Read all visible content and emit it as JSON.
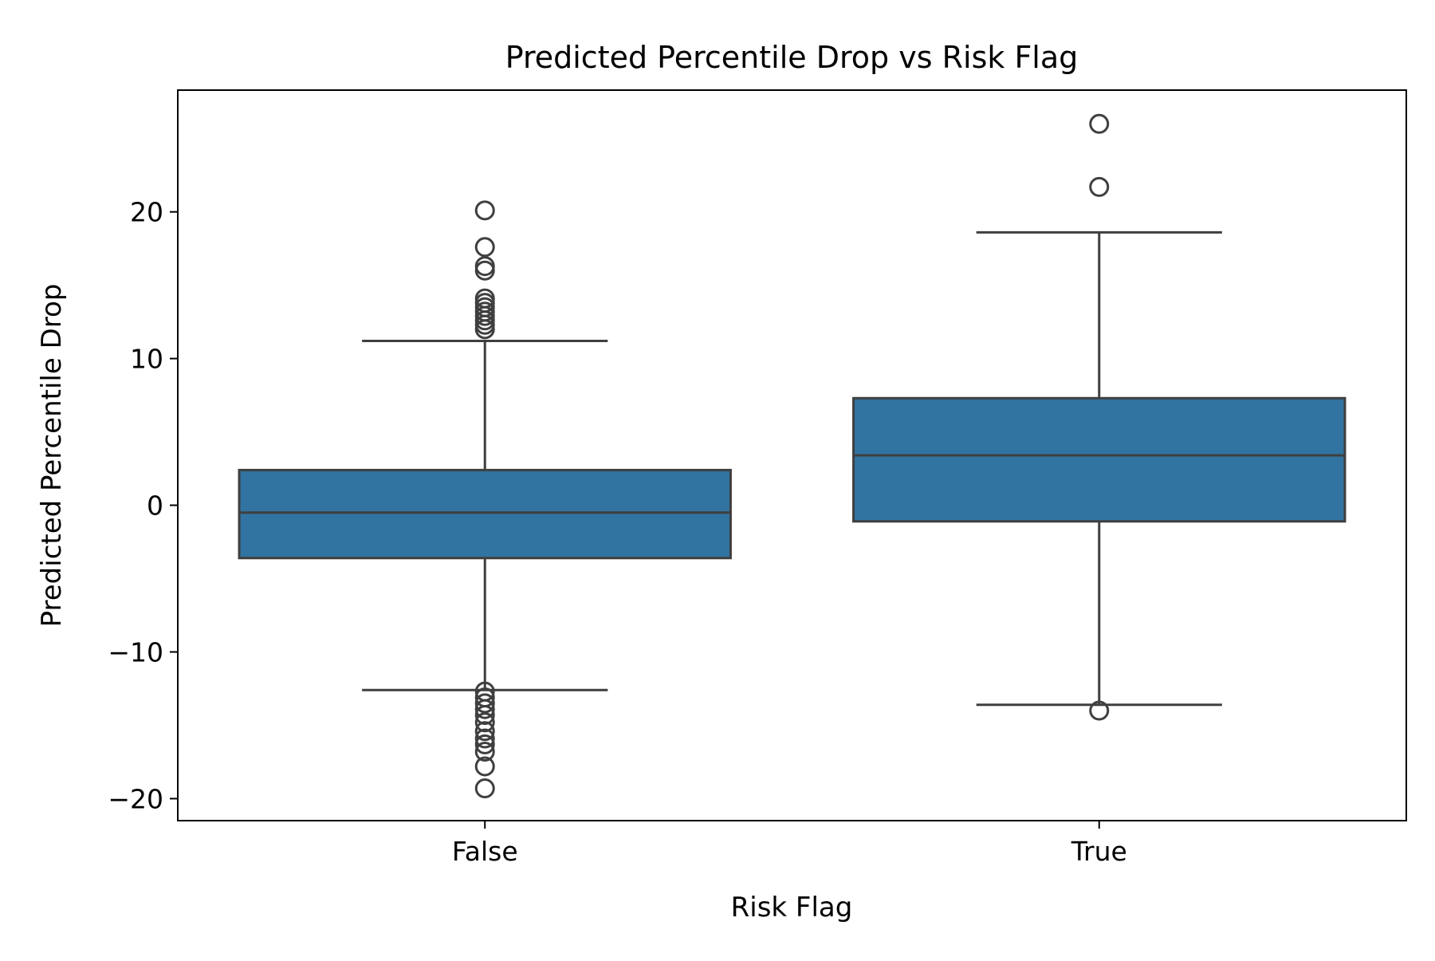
{
  "chart_data": {
    "type": "box",
    "title": "Predicted Percentile Drop vs Risk Flag",
    "xlabel": "Risk Flag",
    "ylabel": "Predicted Percentile Drop",
    "categories": [
      "False",
      "True"
    ],
    "ylim": [
      -21.5,
      28.3
    ],
    "yticks": [
      -20,
      -10,
      0,
      10,
      20
    ],
    "ytick_labels": [
      "−20",
      "−10",
      "0",
      "10",
      "20"
    ],
    "grid": false,
    "legend": "none",
    "box_color": "#3274a1",
    "line_color": "#3f3f3f",
    "boxes": [
      {
        "category": "False",
        "whisker_low": -12.6,
        "q1": -3.6,
        "median": -0.5,
        "q3": 2.4,
        "whisker_high": 11.2,
        "outliers": [
          20.1,
          17.6,
          16.3,
          16.0,
          14.1,
          13.8,
          13.5,
          13.2,
          12.9,
          12.6,
          12.3,
          12.0,
          -12.7,
          -13.1,
          -13.5,
          -13.9,
          -14.3,
          -14.8,
          -15.4,
          -15.9,
          -16.3,
          -16.8,
          -17.8,
          -19.3
        ]
      },
      {
        "category": "True",
        "whisker_low": -13.6,
        "q1": -1.1,
        "median": 3.4,
        "q3": 7.3,
        "whisker_high": 18.6,
        "outliers": [
          26.0,
          21.7,
          -14.0
        ]
      }
    ]
  }
}
